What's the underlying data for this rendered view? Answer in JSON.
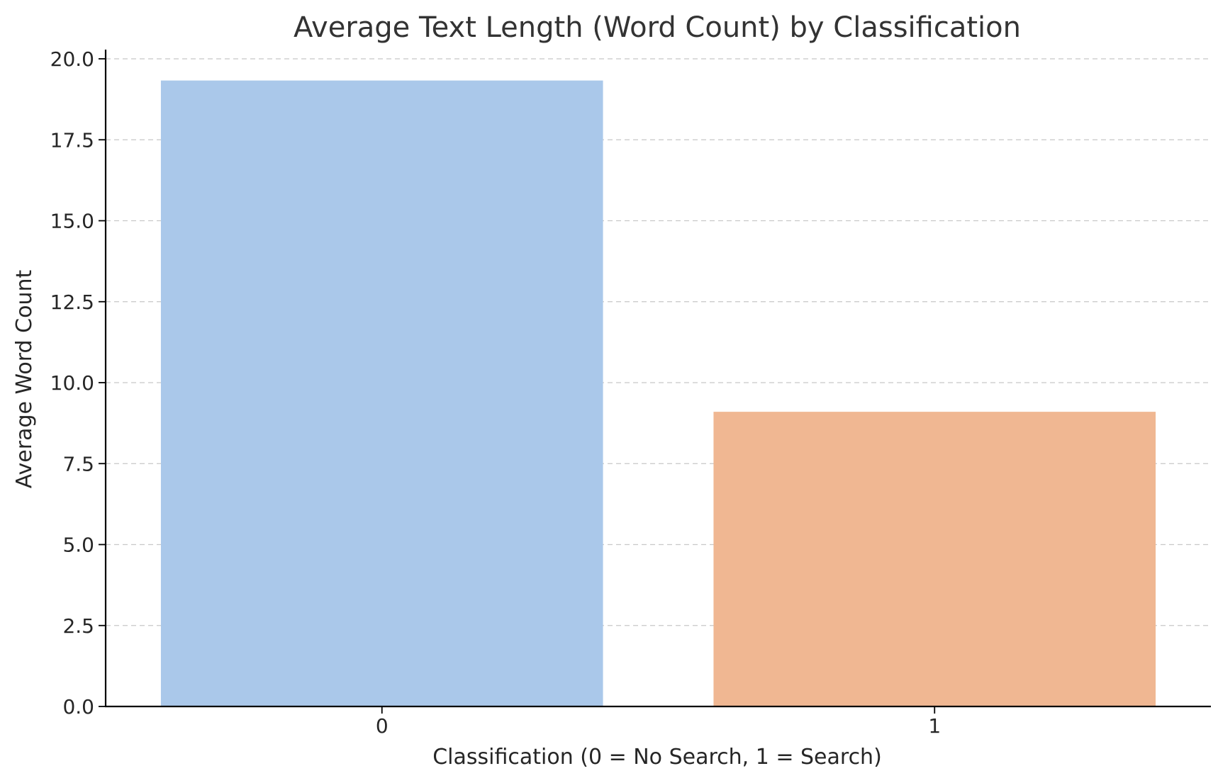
{
  "chart_data": {
    "type": "bar",
    "title": "Average Text Length (Word Count) by Classification",
    "xlabel": "Classification (0 = No Search, 1 = Search)",
    "ylabel": "Average Word Count",
    "categories": [
      "0",
      "1"
    ],
    "values": [
      19.33,
      9.1
    ],
    "colors": [
      "#aac8ea",
      "#f0b792"
    ],
    "ylim": [
      0,
      20
    ],
    "yticks": [
      "0.0",
      "2.5",
      "5.0",
      "7.5",
      "10.0",
      "12.5",
      "15.0",
      "17.5",
      "20.0"
    ],
    "grid": "horizontal dashed",
    "legend": "none"
  }
}
